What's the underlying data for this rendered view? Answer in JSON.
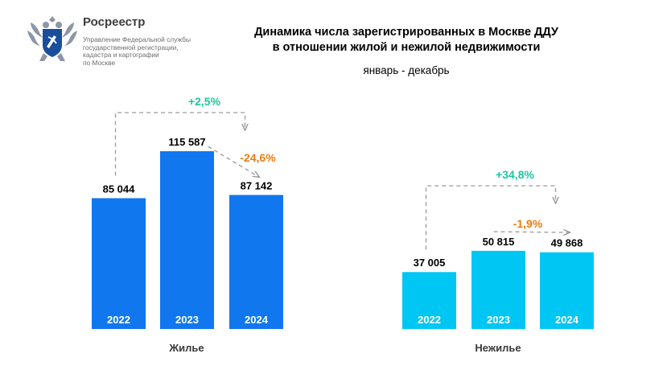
{
  "header": {
    "brand_name": "Росреестр",
    "brand_sub": [
      "Управление Федеральной службы",
      "государственной регистрации,",
      "кадастра и картографии",
      "по Москве"
    ],
    "title_lines": [
      "Динамика числа зарегистрированных в Москве ДДУ",
      "в отношении жилой и нежилой недвижимости"
    ],
    "subtitle": "январь - декабрь"
  },
  "colors": {
    "residential_bar": "#1177ee",
    "nonresidential_bar": "#00c6f4",
    "positive_change": "#1ec6a0",
    "negative_change": "#ee7b10",
    "arrow": "#9a9a9a",
    "brand_blue": "#1a4e9a"
  },
  "icons": {
    "logo": "double-headed-eagle-emblem"
  },
  "chart_data": [
    {
      "type": "bar",
      "title": "Жилье",
      "categories": [
        "2022",
        "2023",
        "2024"
      ],
      "values": [
        85044,
        115587,
        87142
      ],
      "value_labels": [
        "85 044",
        "115 587",
        "87 142"
      ],
      "annotations": [
        {
          "text": "+2,5%",
          "from": "2022",
          "to": "2024",
          "kind": "positive"
        },
        {
          "text": "-24,6%",
          "from": "2023",
          "to": "2024",
          "kind": "negative"
        }
      ]
    },
    {
      "type": "bar",
      "title": "Нежилье",
      "categories": [
        "2022",
        "2023",
        "2024"
      ],
      "values": [
        37005,
        50815,
        49868
      ],
      "value_labels": [
        "37 005",
        "50 815",
        "49 868"
      ],
      "annotations": [
        {
          "text": "+34,8%",
          "from": "2022",
          "to": "2024",
          "kind": "positive"
        },
        {
          "text": "-1,9%",
          "from": "2023",
          "to": "2024",
          "kind": "negative"
        }
      ]
    }
  ]
}
